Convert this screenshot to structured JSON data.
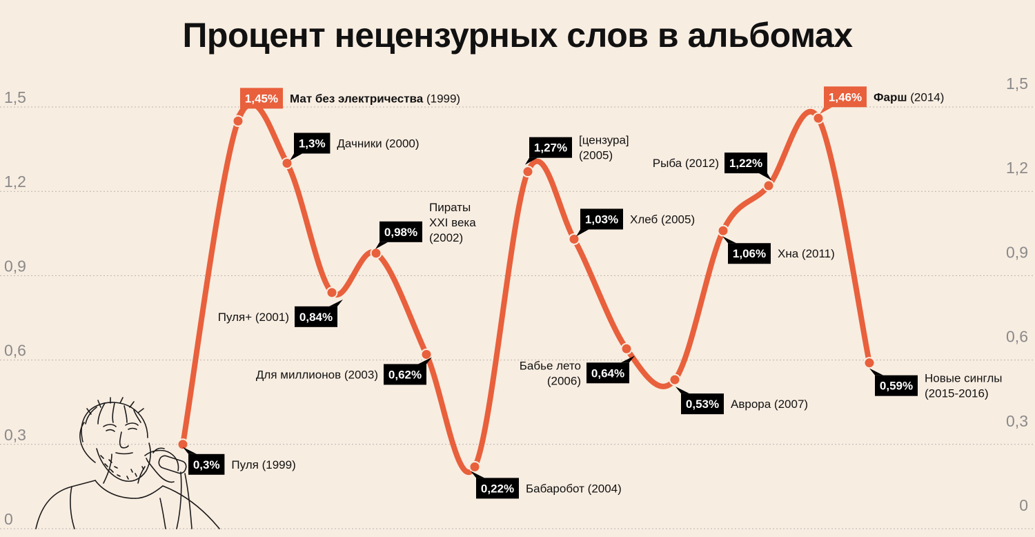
{
  "chart_data": {
    "type": "line",
    "title": "Процент нецензурных слов в альбомах",
    "ylim": [
      0,
      1.5
    ],
    "y_ticks": [
      {
        "value": 0,
        "left": "0",
        "right": "0"
      },
      {
        "value": 0.3,
        "left": "0,3",
        "right": "0,3"
      },
      {
        "value": 0.6,
        "left": "0,6",
        "right": "0,6"
      },
      {
        "value": 0.9,
        "left": "0,9",
        "right": "0,9"
      },
      {
        "value": 1.2,
        "left": "1,2",
        "right": "1,2"
      },
      {
        "value": 1.5,
        "left": "1,5",
        "right": "1,5"
      }
    ],
    "grid": true,
    "line_color": "#e8603c",
    "badge_color": "#000000",
    "highlight_color": "#e8603c",
    "points": [
      {
        "value": 0.3,
        "badge": "0,3%",
        "album": "Пуля",
        "year": "(1999)",
        "highlight": false
      },
      {
        "value": 1.45,
        "badge": "1,45%",
        "album": "Мат без электричества",
        "year": "(1999)",
        "highlight": true
      },
      {
        "value": 1.3,
        "badge": "1,3%",
        "album": "Дачники",
        "year": "(2000)",
        "highlight": false
      },
      {
        "value": 0.84,
        "badge": "0,84%",
        "album": "Пуля+",
        "year": "(2001)",
        "highlight": false
      },
      {
        "value": 0.98,
        "badge": "0,98%",
        "album": "Пираты XXI века",
        "year": "(2002)",
        "highlight": false
      },
      {
        "value": 0.62,
        "badge": "0,62%",
        "album": "Для миллионов",
        "year": "(2003)",
        "highlight": false
      },
      {
        "value": 0.22,
        "badge": "0,22%",
        "album": "Бабаробот",
        "year": "(2004)",
        "highlight": false
      },
      {
        "value": 1.27,
        "badge": "1,27%",
        "album": "[цензура]",
        "year": "(2005)",
        "highlight": false
      },
      {
        "value": 1.03,
        "badge": "1,03%",
        "album": "Хлеб",
        "year": "(2005)",
        "highlight": false
      },
      {
        "value": 0.64,
        "badge": "0,64%",
        "album": "Бабье лето",
        "year": "(2006)",
        "highlight": false
      },
      {
        "value": 0.53,
        "badge": "0,53%",
        "album": "Аврора",
        "year": "(2007)",
        "highlight": false
      },
      {
        "value": 1.06,
        "badge": "1,06%",
        "album": "Хна",
        "year": "(2011)",
        "highlight": false
      },
      {
        "value": 1.22,
        "badge": "1,22%",
        "album": "Рыба",
        "year": "(2012)",
        "highlight": false
      },
      {
        "value": 1.46,
        "badge": "1,46%",
        "album": "Фарш",
        "year": "(2014)",
        "highlight": true
      },
      {
        "value": 0.59,
        "badge": "0,59%",
        "album": "Новые синглы",
        "year": "(2015-2016)",
        "highlight": false
      }
    ]
  },
  "illustration": {
    "icon": "singer-sketch"
  }
}
